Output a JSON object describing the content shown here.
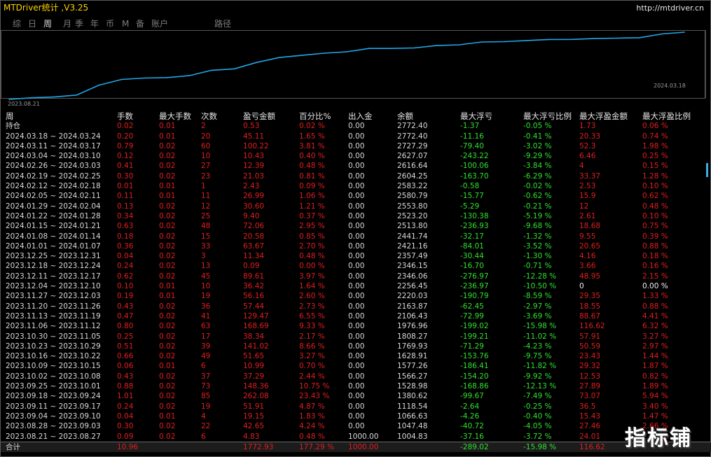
{
  "window": {
    "title": "MTDriver统计 ,V3.25",
    "url": "http://mtdriver.cn"
  },
  "nav": {
    "tabs": [
      "综",
      "日",
      "周",
      "月",
      "季",
      "年",
      "币",
      "M",
      "备",
      "账户",
      "路径"
    ],
    "active": "周"
  },
  "chart_data": {
    "type": "line",
    "x_start_label": "2023.08.21",
    "x_end_label": "2024.03.18",
    "line_color": "#22a7e6",
    "x": [
      "2023.08.21",
      "2023.08.28",
      "2023.09.04",
      "2023.09.11",
      "2023.09.18",
      "2023.09.25",
      "2023.10.02",
      "2023.10.09",
      "2023.10.16",
      "2023.10.23",
      "2023.10.30",
      "2023.11.06",
      "2023.11.13",
      "2023.11.20",
      "2023.11.27",
      "2023.12.04",
      "2023.12.11",
      "2023.12.18",
      "2023.12.25",
      "2024.01.01",
      "2024.01.08",
      "2024.01.15",
      "2024.01.22",
      "2024.01.29",
      "2024.02.05",
      "2024.02.12",
      "2024.02.19",
      "2024.02.26",
      "2024.03.04",
      "2024.03.11",
      "2024.03.18"
    ],
    "values": [
      1004.83,
      1047.48,
      1066.63,
      1118.54,
      1380.62,
      1528.98,
      1566.27,
      1577.26,
      1628.91,
      1769.93,
      1808.27,
      1976.96,
      2106.43,
      2163.87,
      2220.03,
      2256.45,
      2346.06,
      2346.15,
      2357.49,
      2421.16,
      2441.74,
      2513.8,
      2523.2,
      2553.8,
      2580.79,
      2583.22,
      2604.25,
      2616.64,
      2627.07,
      2727.29,
      2772.4
    ],
    "series": [],
    "grid": false
  },
  "table": {
    "headers": [
      "周",
      "手数",
      "最大手数",
      "次数",
      "盈亏金额",
      "百分比%",
      "出入金",
      "余额",
      "最大浮亏",
      "最大浮亏比例",
      "最大浮盈金额",
      "最大浮盈比例"
    ],
    "holding": {
      "label": "持仓",
      "lots": "0.02",
      "max_lots": "0.01",
      "count": "2",
      "pnl": "0.53",
      "pct": "0.02 %",
      "io": "0.00",
      "balance": "2772.40",
      "dd": "-1.37",
      "dd_pct": "-0.05 %",
      "fp": "1.73",
      "fp_pct": "0.06 %"
    },
    "rows": [
      [
        "2024.03.18 ~ 2024.03.24",
        "0.20",
        "0.01",
        "20",
        "45.11",
        "1.65 %",
        "0.00",
        "2772.40",
        "-11.16",
        "-0.41 %",
        "20.33",
        "0.74 %"
      ],
      [
        "2024.03.11 ~ 2024.03.17",
        "0.79",
        "0.02",
        "60",
        "100.22",
        "3.81 %",
        "0.00",
        "2727.29",
        "-79.40",
        "-3.02 %",
        "52.3",
        "1.98 %"
      ],
      [
        "2024.03.04 ~ 2024.03.10",
        "0.12",
        "0.02",
        "10",
        "10.43",
        "0.40 %",
        "0.00",
        "2627.07",
        "-243.22",
        "-9.29 %",
        "6.46",
        "0.25 %"
      ],
      [
        "2024.02.26 ~ 2024.03.03",
        "0.41",
        "0.02",
        "27",
        "12.39",
        "0.48 %",
        "0.00",
        "2616.64",
        "-100.06",
        "-3.84 %",
        "4",
        "0.15 %"
      ],
      [
        "2024.02.19 ~ 2024.02.25",
        "0.30",
        "0.02",
        "23",
        "21.03",
        "0.81 %",
        "0.00",
        "2604.25",
        "-163.70",
        "-6.29 %",
        "33.37",
        "1.28 %"
      ],
      [
        "2024.02.12 ~ 2024.02.18",
        "0.01",
        "0.01",
        "1",
        "2.43",
        "0.09 %",
        "0.00",
        "2583.22",
        "-0.58",
        "-0.02 %",
        "2.53",
        "0.10 %"
      ],
      [
        "2024.02.05 ~ 2024.02.11",
        "0.11",
        "0.01",
        "11",
        "26.99",
        "1.06 %",
        "0.00",
        "2580.79",
        "-15.77",
        "-0.62 %",
        "15.9",
        "0.62 %"
      ],
      [
        "2024.01.29 ~ 2024.02.04",
        "0.13",
        "0.02",
        "12",
        "30.60",
        "1.21 %",
        "0.00",
        "2553.80",
        "-5.29",
        "-0.21 %",
        "12",
        "0.48 %"
      ],
      [
        "2024.01.22 ~ 2024.01.28",
        "0.34",
        "0.02",
        "25",
        "9.40",
        "0.37 %",
        "0.00",
        "2523.20",
        "-130.38",
        "-5.19 %",
        "2.61",
        "0.10 %"
      ],
      [
        "2024.01.15 ~ 2024.01.21",
        "0.63",
        "0.02",
        "48",
        "72.06",
        "2.95 %",
        "0.00",
        "2513.80",
        "-236.93",
        "-9.68 %",
        "18.68",
        "0.75 %"
      ],
      [
        "2024.01.08 ~ 2024.01.14",
        "0.18",
        "0.02",
        "15",
        "20.58",
        "0.85 %",
        "0.00",
        "2441.74",
        "-32.17",
        "-1.32 %",
        "9.55",
        "0.39 %"
      ],
      [
        "2024.01.01 ~ 2024.01.07",
        "0.36",
        "0.02",
        "33",
        "63.67",
        "2.70 %",
        "0.00",
        "2421.16",
        "-84.01",
        "-3.52 %",
        "20.65",
        "0.88 %"
      ],
      [
        "2023.12.25 ~ 2023.12.31",
        "0.04",
        "0.02",
        "3",
        "11.34",
        "0.48 %",
        "0.00",
        "2357.49",
        "-30.44",
        "-1.30 %",
        "4.16",
        "0.18 %"
      ],
      [
        "2023.12.18 ~ 2023.12.24",
        "0.24",
        "0.02",
        "13",
        "0.09",
        "0.00 %",
        "0.00",
        "2346.15",
        "-16.70",
        "-0.71 %",
        "3.66",
        "0.16 %"
      ],
      [
        "2023.12.11 ~ 2023.12.17",
        "0.62",
        "0.02",
        "45",
        "89.61",
        "3.97 %",
        "0.00",
        "2346.06",
        "-276.97",
        "-12.28 %",
        "48.95",
        "2.15 %"
      ],
      [
        "2023.12.04 ~ 2023.12.10",
        "0.10",
        "0.01",
        "10",
        "36.42",
        "1.64 %",
        "0.00",
        "2256.45",
        "-236.97",
        "-10.50 %",
        "0",
        "0.00 %"
      ],
      [
        "2023.11.27 ~ 2023.12.03",
        "0.19",
        "0.01",
        "19",
        "56.16",
        "2.60 %",
        "0.00",
        "2220.03",
        "-190.79",
        "-8.59 %",
        "29.35",
        "1.33 %"
      ],
      [
        "2023.11.20 ~ 2023.11.26",
        "0.43",
        "0.02",
        "36",
        "57.44",
        "2.73 %",
        "0.00",
        "2163.87",
        "-62.45",
        "-2.97 %",
        "18.55",
        "0.88 %"
      ],
      [
        "2023.11.13 ~ 2023.11.19",
        "0.47",
        "0.02",
        "41",
        "129.47",
        "6.55 %",
        "0.00",
        "2106.43",
        "-72.99",
        "-3.69 %",
        "88.67",
        "4.41 %"
      ],
      [
        "2023.11.06 ~ 2023.11.12",
        "0.80",
        "0.02",
        "63",
        "168.69",
        "9.33 %",
        "0.00",
        "1976.96",
        "-199.02",
        "-15.98 %",
        "116.62",
        "6.32 %"
      ],
      [
        "2023.10.30 ~ 2023.11.05",
        "0.25",
        "0.02",
        "17",
        "38.34",
        "2.17 %",
        "0.00",
        "1808.27",
        "-199.21",
        "-11.02 %",
        "57.91",
        "3.27 %"
      ],
      [
        "2023.10.23 ~ 2023.10.29",
        "0.51",
        "0.02",
        "39",
        "141.02",
        "8.66 %",
        "0.00",
        "1769.93",
        "-71.29",
        "-4.23 %",
        "50.59",
        "2.97 %"
      ],
      [
        "2023.10.16 ~ 2023.10.22",
        "0.66",
        "0.02",
        "49",
        "51.65",
        "3.27 %",
        "0.00",
        "1628.91",
        "-153.76",
        "-9.75 %",
        "23.43",
        "1.44 %"
      ],
      [
        "2023.10.09 ~ 2023.10.15",
        "0.06",
        "0.01",
        "6",
        "10.99",
        "0.70 %",
        "0.00",
        "1577.26",
        "-186.41",
        "-11.82 %",
        "29.32",
        "1.87 %"
      ],
      [
        "2023.10.02 ~ 2023.10.08",
        "0.43",
        "0.02",
        "37",
        "37.29",
        "2.44 %",
        "0.00",
        "1566.27",
        "-154.20",
        "-9.92 %",
        "12.53",
        "0.82 %"
      ],
      [
        "2023.09.25 ~ 2023.10.01",
        "0.88",
        "0.02",
        "73",
        "148.36",
        "10.75 %",
        "0.00",
        "1528.98",
        "-168.86",
        "-12.13 %",
        "27.89",
        "1.89 %"
      ],
      [
        "2023.09.18 ~ 2023.09.24",
        "1.01",
        "0.02",
        "85",
        "262.08",
        "23.43 %",
        "0.00",
        "1380.62",
        "-99.67",
        "-7.49 %",
        "73.07",
        "5.94 %"
      ],
      [
        "2023.09.11 ~ 2023.09.17",
        "0.24",
        "0.02",
        "19",
        "51.91",
        "4.87 %",
        "0.00",
        "1118.54",
        "-2.64",
        "-0.25 %",
        "36.5",
        "3.40 %"
      ],
      [
        "2023.09.04 ~ 2023.09.10",
        "0.04",
        "0.01",
        "4",
        "19.15",
        "1.83 %",
        "0.00",
        "1066.63",
        "-4.26",
        "-0.40 %",
        "15.43",
        "1.47 %"
      ],
      [
        "2023.08.28 ~ 2023.09.03",
        "0.30",
        "0.02",
        "22",
        "42.65",
        "4.24 %",
        "0.00",
        "1047.48",
        "-40.72",
        "-4.05 %",
        "27.46",
        "2.66 %"
      ],
      [
        "2023.08.21 ~ 2023.08.27",
        "0.09",
        "0.02",
        "6",
        "4.83",
        "0.48 %",
        "1000.00",
        "1004.83",
        "-37.16",
        "-3.72 %",
        "24.01",
        "2.40 %"
      ]
    ],
    "total": {
      "label": "合计",
      "lots": "10.96",
      "pnl": "1772.93",
      "pct": "177.29 %",
      "io": "1000.00",
      "dd": "-289.02",
      "dd_pct": "-15.98 %",
      "fp": "116.62"
    }
  },
  "watermark": "指标铺"
}
